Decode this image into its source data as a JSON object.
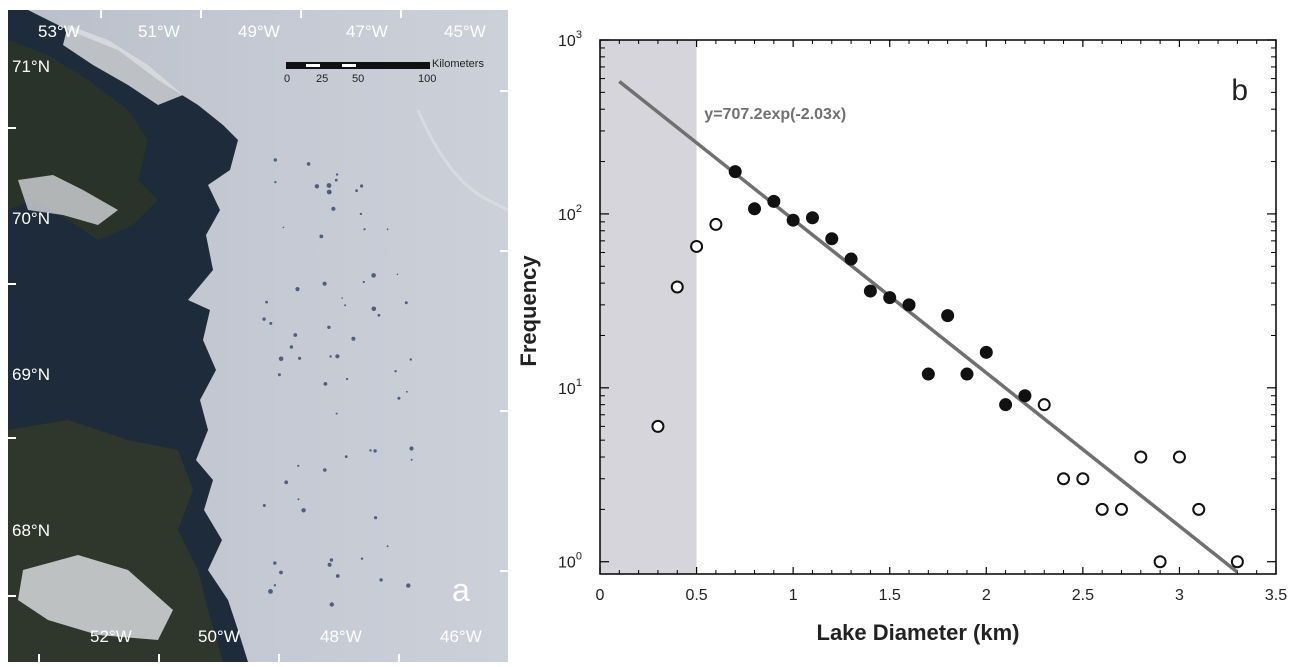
{
  "panel_a": {
    "label": "a",
    "top_lon_labels": [
      "53°W",
      "51°W",
      "49°W",
      "47°W",
      "45°W"
    ],
    "bottom_lon_labels": [
      "52°W",
      "50°W",
      "48°W",
      "46°W"
    ],
    "lat_labels": [
      "71°N",
      "70°N",
      "69°N",
      "68°N"
    ],
    "scale_bar": {
      "unit": "Kilometers",
      "ticks": [
        "0",
        "25",
        "50",
        "100"
      ]
    },
    "colors": {
      "ocean": "#1e2b3a",
      "land": "#2a3428",
      "ice": "#c4c9d3",
      "lake": "#2a3a66"
    }
  },
  "chart_data": {
    "type": "scatter",
    "panel_label": "b",
    "xlabel": "Lake Diameter (km)",
    "ylabel": "Frequency",
    "xlim": [
      0,
      3.5
    ],
    "ylim": [
      0.85,
      1000
    ],
    "yscale": "log",
    "xticks": [
      "0",
      "0.5",
      "1",
      "1.5",
      "2",
      "2.5",
      "3",
      "3.5"
    ],
    "yticks": [
      {
        "base": "10",
        "exp": "0"
      },
      {
        "base": "10",
        "exp": "1"
      },
      {
        "base": "10",
        "exp": "2"
      },
      {
        "base": "10",
        "exp": "3"
      }
    ],
    "shaded_region": {
      "x": [
        0,
        0.5
      ],
      "color": "#d5d5db"
    },
    "fit": {
      "equation": "y=707.2exp(-2.03x)",
      "a": 707.2,
      "b": -2.03,
      "x_range": [
        0.1,
        3.3
      ],
      "color": "#707070"
    },
    "series": [
      {
        "style": "open",
        "points": [
          [
            0.3,
            6
          ],
          [
            0.4,
            38
          ],
          [
            0.5,
            65
          ],
          [
            0.6,
            87
          ],
          [
            2.3,
            8
          ],
          [
            2.4,
            3
          ],
          [
            2.5,
            3
          ],
          [
            2.6,
            2
          ],
          [
            2.7,
            2
          ],
          [
            2.8,
            4
          ],
          [
            2.9,
            1
          ],
          [
            3.0,
            4
          ],
          [
            3.1,
            2
          ],
          [
            3.3,
            1
          ]
        ]
      },
      {
        "style": "filled",
        "points": [
          [
            0.7,
            175
          ],
          [
            0.8,
            107
          ],
          [
            0.9,
            118
          ],
          [
            1.0,
            92
          ],
          [
            1.1,
            95
          ],
          [
            1.2,
            72
          ],
          [
            1.3,
            55
          ],
          [
            1.4,
            36
          ],
          [
            1.5,
            33
          ],
          [
            1.6,
            30
          ],
          [
            1.7,
            12
          ],
          [
            1.8,
            26
          ],
          [
            1.9,
            12
          ],
          [
            2.0,
            16
          ],
          [
            2.1,
            8
          ],
          [
            2.2,
            9
          ]
        ]
      }
    ]
  }
}
